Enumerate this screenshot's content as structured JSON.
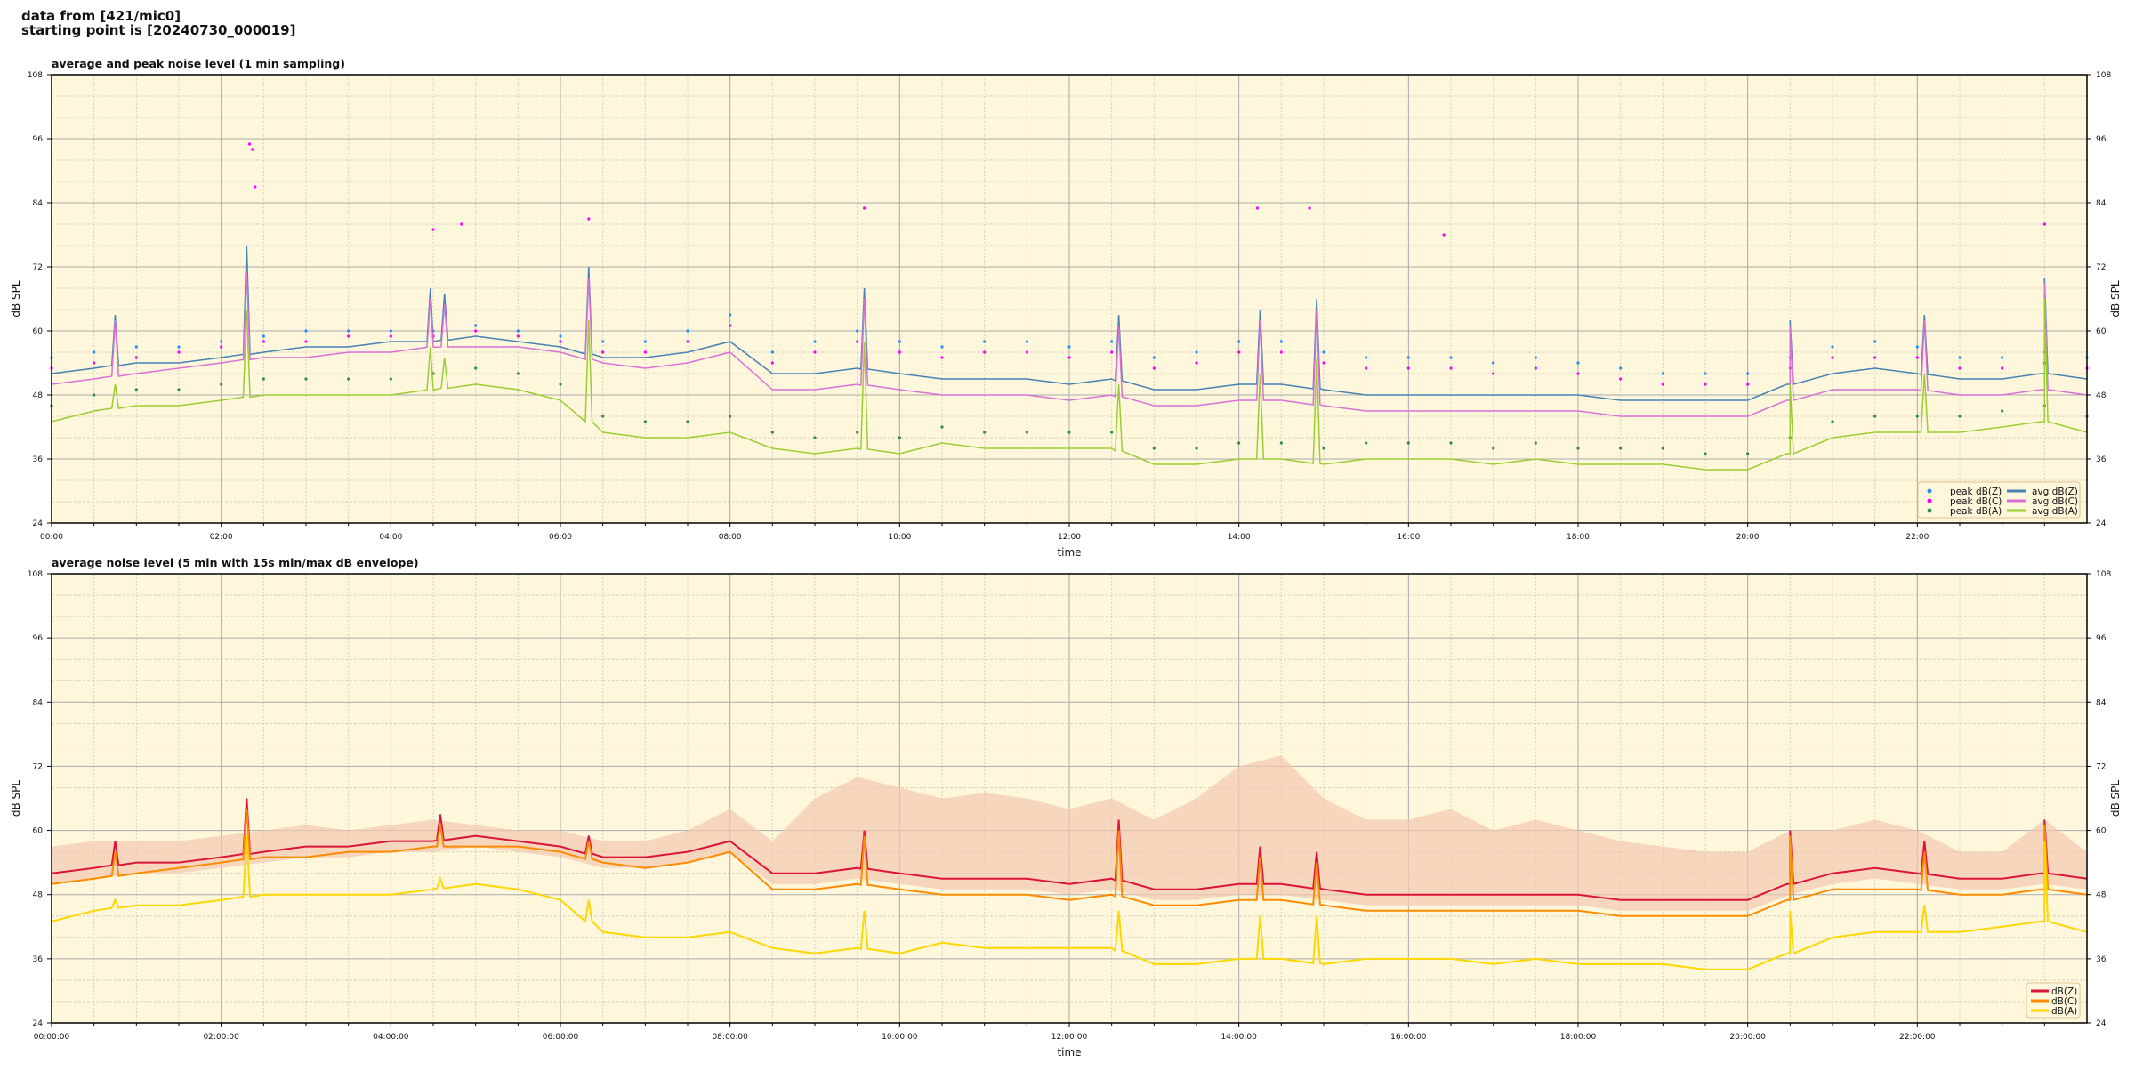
{
  "header": {
    "line1": "data from [421/mic0]",
    "line2": "starting point is [20240730_000019]"
  },
  "colors": {
    "plot_bg": "#fff7dc",
    "grid_major": "#aaaaaa",
    "grid_minor": "#d8d0b8"
  },
  "chart_data": [
    {
      "type": "line",
      "title": "average and peak noise level (1 min sampling)",
      "xlabel": "time",
      "ylabel": "dB SPL",
      "ylim": [
        24,
        108
      ],
      "yticks": [
        24,
        36,
        48,
        60,
        72,
        84,
        96,
        108
      ],
      "xlim": [
        "00:00",
        "24:00"
      ],
      "xticks": [
        "00:00",
        "02:00",
        "04:00",
        "06:00",
        "08:00",
        "10:00",
        "12:00",
        "14:00",
        "16:00",
        "18:00",
        "20:00",
        "22:00"
      ],
      "grid": true,
      "legend": "bottom-right",
      "x": [
        "00:00",
        "00:30",
        "01:00",
        "01:30",
        "02:00",
        "02:30",
        "03:00",
        "03:30",
        "04:00",
        "04:30",
        "05:00",
        "05:30",
        "06:00",
        "06:30",
        "07:00",
        "07:30",
        "08:00",
        "08:30",
        "09:00",
        "09:30",
        "10:00",
        "10:30",
        "11:00",
        "11:30",
        "12:00",
        "12:30",
        "13:00",
        "13:30",
        "14:00",
        "14:30",
        "15:00",
        "15:30",
        "16:00",
        "16:30",
        "17:00",
        "17:30",
        "18:00",
        "18:30",
        "19:00",
        "19:30",
        "20:00",
        "20:30",
        "21:00",
        "21:30",
        "22:00",
        "22:30",
        "23:00",
        "23:30",
        "24:00"
      ],
      "series": [
        {
          "name": "avg dB(Z)",
          "kind": "line",
          "color": "#4682b4",
          "values": [
            52,
            53,
            54,
            54,
            55,
            56,
            57,
            57,
            58,
            58,
            59,
            58,
            57,
            55,
            55,
            56,
            58,
            52,
            52,
            53,
            52,
            51,
            51,
            51,
            50,
            51,
            49,
            49,
            50,
            50,
            49,
            48,
            48,
            48,
            48,
            48,
            48,
            47,
            47,
            47,
            47,
            50,
            52,
            53,
            52,
            51,
            51,
            52,
            51
          ]
        },
        {
          "name": "avg dB(C)",
          "kind": "line",
          "color": "#da70d6",
          "values": [
            50,
            51,
            52,
            53,
            54,
            55,
            55,
            56,
            56,
            57,
            57,
            57,
            56,
            54,
            53,
            54,
            56,
            49,
            49,
            50,
            49,
            48,
            48,
            48,
            47,
            48,
            46,
            46,
            47,
            47,
            46,
            45,
            45,
            45,
            45,
            45,
            45,
            44,
            44,
            44,
            44,
            47,
            49,
            49,
            49,
            48,
            48,
            49,
            48
          ]
        },
        {
          "name": "avg dB(A)",
          "kind": "line",
          "color": "#9acd32",
          "values": [
            43,
            45,
            46,
            46,
            47,
            48,
            48,
            48,
            48,
            49,
            50,
            49,
            47,
            41,
            40,
            40,
            41,
            38,
            37,
            38,
            37,
            39,
            38,
            38,
            38,
            38,
            35,
            35,
            36,
            36,
            35,
            36,
            36,
            36,
            35,
            36,
            35,
            35,
            35,
            34,
            34,
            37,
            40,
            41,
            41,
            41,
            42,
            43,
            41
          ]
        },
        {
          "name": "peak dB(Z)",
          "kind": "scatter",
          "color": "#1e90ff",
          "values": [
            55,
            56,
            57,
            57,
            58,
            59,
            60,
            60,
            60,
            60,
            61,
            60,
            59,
            58,
            58,
            60,
            63,
            56,
            58,
            60,
            58,
            57,
            58,
            58,
            57,
            58,
            55,
            56,
            58,
            58,
            56,
            55,
            55,
            55,
            54,
            55,
            54,
            53,
            52,
            52,
            52,
            55,
            57,
            58,
            57,
            55,
            55,
            56,
            55
          ]
        },
        {
          "name": "peak dB(C)",
          "kind": "scatter",
          "color": "#ff00ff",
          "values": [
            53,
            54,
            55,
            56,
            57,
            58,
            58,
            59,
            59,
            59,
            60,
            59,
            58,
            56,
            56,
            58,
            61,
            54,
            56,
            58,
            56,
            55,
            56,
            56,
            55,
            56,
            53,
            54,
            56,
            56,
            54,
            53,
            53,
            53,
            52,
            53,
            52,
            51,
            50,
            50,
            50,
            53,
            55,
            55,
            55,
            53,
            53,
            54,
            53
          ]
        },
        {
          "name": "peak dB(A)",
          "kind": "scatter",
          "color": "#2e8b57",
          "values": [
            46,
            48,
            49,
            49,
            50,
            51,
            51,
            51,
            51,
            52,
            53,
            52,
            50,
            44,
            43,
            43,
            44,
            41,
            40,
            41,
            40,
            42,
            41,
            41,
            41,
            41,
            38,
            38,
            39,
            39,
            38,
            39,
            39,
            39,
            38,
            39,
            38,
            38,
            38,
            37,
            37,
            40,
            43,
            44,
            44,
            44,
            45,
            46,
            44
          ]
        }
      ],
      "spikes": [
        {
          "t": "00:45",
          "z": 63,
          "c": 62,
          "a": 50
        },
        {
          "t": "02:18",
          "z": 76,
          "c": 71,
          "a": 64
        },
        {
          "t": "04:28",
          "z": 68,
          "c": 66,
          "a": 57
        },
        {
          "t": "04:38",
          "z": 67,
          "c": 65,
          "a": 55
        },
        {
          "t": "06:20",
          "z": 72,
          "c": 70,
          "a": 62
        },
        {
          "t": "09:35",
          "z": 68,
          "c": 66,
          "a": 58
        },
        {
          "t": "12:35",
          "z": 63,
          "c": 61,
          "a": 50
        },
        {
          "t": "14:15",
          "z": 64,
          "c": 62,
          "a": 52
        },
        {
          "t": "14:55",
          "z": 66,
          "c": 64,
          "a": 55
        },
        {
          "t": "20:30",
          "z": 62,
          "c": 61,
          "a": 50
        },
        {
          "t": "22:05",
          "z": 63,
          "c": 62,
          "a": 52
        },
        {
          "t": "23:30",
          "z": 70,
          "c": 69,
          "a": 66
        }
      ],
      "peak_outliers": [
        {
          "t": "02:20",
          "v": 95
        },
        {
          "t": "02:22",
          "v": 94
        },
        {
          "t": "02:24",
          "v": 87
        },
        {
          "t": "06:20",
          "v": 81
        },
        {
          "t": "09:35",
          "v": 83
        },
        {
          "t": "04:30",
          "v": 79
        },
        {
          "t": "04:50",
          "v": 80
        },
        {
          "t": "14:13",
          "v": 83
        },
        {
          "t": "14:50",
          "v": 83
        },
        {
          "t": "16:25",
          "v": 78
        },
        {
          "t": "23:30",
          "v": 80
        }
      ]
    },
    {
      "type": "line",
      "title": "average noise level (5 min with 15s min/max dB envelope)",
      "xlabel": "time",
      "ylabel": "dB SPL",
      "ylim": [
        24,
        108
      ],
      "yticks": [
        24,
        36,
        48,
        60,
        72,
        84,
        96,
        108
      ],
      "xlim": [
        "00:00:00",
        "24:00:00"
      ],
      "xticks": [
        "00:00:00",
        "02:00:00",
        "04:00:00",
        "06:00:00",
        "08:00:00",
        "10:00:00",
        "12:00:00",
        "14:00:00",
        "16:00:00",
        "18:00:00",
        "20:00:00",
        "22:00:00"
      ],
      "grid": true,
      "legend": "bottom-right",
      "envelope_color": "#f4c7b0",
      "x": [
        "00:00",
        "00:30",
        "01:00",
        "01:30",
        "02:00",
        "02:30",
        "03:00",
        "03:30",
        "04:00",
        "04:30",
        "05:00",
        "05:30",
        "06:00",
        "06:30",
        "07:00",
        "07:30",
        "08:00",
        "08:30",
        "09:00",
        "09:30",
        "10:00",
        "10:30",
        "11:00",
        "11:30",
        "12:00",
        "12:30",
        "13:00",
        "13:30",
        "14:00",
        "14:30",
        "15:00",
        "15:30",
        "16:00",
        "16:30",
        "17:00",
        "17:30",
        "18:00",
        "18:30",
        "19:00",
        "19:30",
        "20:00",
        "20:30",
        "21:00",
        "21:30",
        "22:00",
        "22:30",
        "23:00",
        "23:30",
        "24:00"
      ],
      "envelope_max": [
        57,
        58,
        58,
        58,
        59,
        60,
        61,
        60,
        61,
        62,
        61,
        60,
        60,
        58,
        58,
        60,
        64,
        58,
        66,
        70,
        68,
        66,
        67,
        66,
        64,
        66,
        62,
        66,
        72,
        74,
        66,
        62,
        62,
        64,
        60,
        62,
        60,
        58,
        57,
        56,
        56,
        60,
        60,
        62,
        60,
        56,
        56,
        62,
        56
      ],
      "series": [
        {
          "name": "dB(Z)",
          "color": "#dc143c",
          "values": [
            52,
            53,
            54,
            54,
            55,
            56,
            57,
            57,
            58,
            58,
            59,
            58,
            57,
            55,
            55,
            56,
            58,
            52,
            52,
            53,
            52,
            51,
            51,
            51,
            50,
            51,
            49,
            49,
            50,
            50,
            49,
            48,
            48,
            48,
            48,
            48,
            48,
            47,
            47,
            47,
            47,
            50,
            52,
            53,
            52,
            51,
            51,
            52,
            51
          ]
        },
        {
          "name": "dB(C)",
          "color": "#ff8c00",
          "values": [
            50,
            51,
            52,
            53,
            54,
            55,
            55,
            56,
            56,
            57,
            57,
            57,
            56,
            54,
            53,
            54,
            56,
            49,
            49,
            50,
            49,
            48,
            48,
            48,
            47,
            48,
            46,
            46,
            47,
            47,
            46,
            45,
            45,
            45,
            45,
            45,
            45,
            44,
            44,
            44,
            44,
            47,
            49,
            49,
            49,
            48,
            48,
            49,
            48
          ]
        },
        {
          "name": "dB(A)",
          "color": "#ffd700",
          "values": [
            43,
            45,
            46,
            46,
            47,
            48,
            48,
            48,
            48,
            49,
            50,
            49,
            47,
            41,
            40,
            40,
            41,
            38,
            37,
            38,
            37,
            39,
            38,
            38,
            38,
            38,
            35,
            35,
            36,
            36,
            35,
            36,
            36,
            36,
            35,
            36,
            35,
            35,
            35,
            34,
            34,
            37,
            40,
            41,
            41,
            41,
            42,
            43,
            41
          ]
        }
      ],
      "spikes": [
        {
          "t": "00:45",
          "z": 58,
          "c": 56,
          "a": 47
        },
        {
          "t": "02:18",
          "z": 66,
          "c": 64,
          "a": 59
        },
        {
          "t": "04:35",
          "z": 63,
          "c": 61,
          "a": 51
        },
        {
          "t": "06:20",
          "z": 59,
          "c": 58,
          "a": 47
        },
        {
          "t": "09:35",
          "z": 60,
          "c": 59,
          "a": 45
        },
        {
          "t": "12:35",
          "z": 62,
          "c": 60,
          "a": 45
        },
        {
          "t": "14:15",
          "z": 57,
          "c": 55,
          "a": 44
        },
        {
          "t": "14:55",
          "z": 56,
          "c": 54,
          "a": 44
        },
        {
          "t": "20:30",
          "z": 60,
          "c": 59,
          "a": 45
        },
        {
          "t": "22:05",
          "z": 58,
          "c": 56,
          "a": 46
        },
        {
          "t": "23:30",
          "z": 62,
          "c": 61,
          "a": 58
        }
      ]
    }
  ]
}
